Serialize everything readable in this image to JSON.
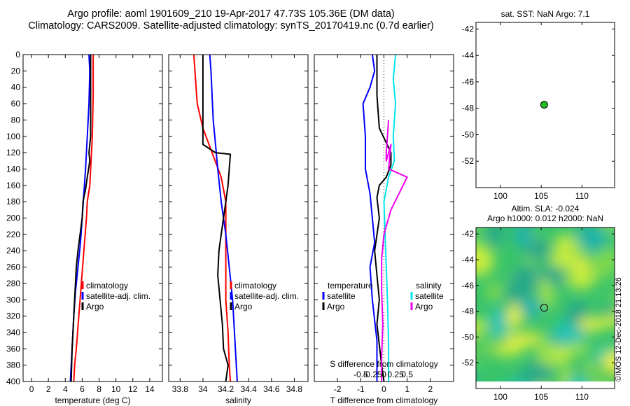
{
  "header": {
    "line1": "Argo profile: aoml 1901609_210 19-Apr-2017 47.73S 105.36E (DM data)",
    "line2": "Climatology: CARS2009. Satellite-adjusted climatology: synTS_20170419.nc (0.7d earlier)"
  },
  "watermark": "©IMOS 12-Dec-2018 21:13:26",
  "colors": {
    "climatology": "#ff0000",
    "satellite": "#0000ff",
    "argo": "#000000",
    "satellite_s": "#00e5ee",
    "climatology_s": "#ee00ee",
    "marker": "#22bb22"
  },
  "chart_data": [
    {
      "id": "temperature",
      "type": "line",
      "xlabel": "temperature (deg C)",
      "ylabel": "",
      "xlim": [
        -1,
        15.5
      ],
      "ylim": [
        400,
        0
      ],
      "xticks": [
        0,
        2,
        4,
        6,
        8,
        10,
        12,
        14
      ],
      "xtick_labels": [
        "0",
        "2",
        "4",
        "6",
        "8",
        "10",
        "12",
        "14"
      ],
      "yticks": [
        0,
        20,
        40,
        60,
        80,
        100,
        120,
        140,
        160,
        180,
        200,
        220,
        240,
        260,
        280,
        300,
        320,
        340,
        360,
        380,
        400
      ],
      "ytick_labels": [
        "0",
        "20",
        "40",
        "60",
        "80",
        "100",
        "120",
        "140",
        "160",
        "180",
        "200",
        "220",
        "240",
        "260",
        "280",
        "300",
        "320",
        "340",
        "360",
        "380",
        "400"
      ],
      "legend": {
        "position": "lower-right",
        "entries": [
          "climatology",
          "satellite-adj. clim.",
          "Argo"
        ]
      },
      "series": [
        {
          "name": "climatology",
          "color": "#ff0000",
          "x": [
            7.3,
            7.3,
            7.2,
            7.1,
            7.0,
            6.9,
            6.6,
            6.5,
            6.2,
            5.9,
            5.6,
            5.3,
            5.1,
            5.0
          ],
          "y": [
            0,
            50,
            100,
            120,
            140,
            160,
            180,
            200,
            240,
            280,
            320,
            360,
            380,
            400
          ]
        },
        {
          "name": "satellite-adj. clim.",
          "color": "#0000ff",
          "x": [
            6.8,
            6.9,
            6.8,
            6.6,
            6.4,
            6.2,
            6.0,
            5.8,
            5.5,
            5.2,
            5.0,
            4.8,
            4.6
          ],
          "y": [
            0,
            20,
            60,
            100,
            140,
            170,
            200,
            230,
            260,
            290,
            320,
            360,
            400
          ]
        },
        {
          "name": "Argo",
          "color": "#000000",
          "x": [
            7.0,
            7.0,
            7.0,
            6.8,
            6.9,
            6.6,
            6.4,
            6.1,
            6.0,
            5.5,
            5.3,
            5.2,
            5.0,
            4.8,
            4.7
          ],
          "y": [
            0,
            60,
            100,
            120,
            130,
            150,
            165,
            180,
            200,
            240,
            260,
            280,
            320,
            360,
            400
          ]
        }
      ]
    },
    {
      "id": "salinity",
      "type": "line",
      "xlabel": "salinity",
      "xlim": [
        33.7,
        34.92
      ],
      "ylim": [
        400,
        0
      ],
      "xticks": [
        33.8,
        34,
        34.2,
        34.4,
        34.6,
        34.8
      ],
      "xtick_labels": [
        "33.8",
        "34",
        "34.2",
        "34.4",
        "34.6",
        "34.8"
      ],
      "legend": {
        "position": "lower-right",
        "entries": [
          "climatology",
          "satellite-adj. clim.",
          "Argo"
        ]
      },
      "series": [
        {
          "name": "climatology",
          "color": "#ff0000",
          "x": [
            33.92,
            33.94,
            33.95,
            34.0,
            34.08,
            34.16,
            34.2,
            34.2,
            34.2,
            34.2,
            34.22,
            34.23,
            34.24
          ],
          "y": [
            0,
            40,
            60,
            90,
            120,
            150,
            180,
            220,
            260,
            300,
            340,
            380,
            400
          ]
        },
        {
          "name": "satellite-adj. clim.",
          "color": "#0000ff",
          "x": [
            34.06,
            34.07,
            34.08,
            34.09,
            34.11,
            34.13,
            34.16,
            34.2,
            34.23,
            34.26,
            34.28,
            34.3
          ],
          "y": [
            0,
            20,
            50,
            80,
            110,
            140,
            180,
            220,
            260,
            300,
            350,
            400
          ]
        },
        {
          "name": "Argo",
          "color": "#000000",
          "x": [
            34.0,
            34.0,
            34.0,
            34.11,
            34.24,
            34.23,
            34.22,
            34.2,
            34.18,
            34.16,
            34.14,
            34.13,
            34.15,
            34.17,
            34.18,
            34.22,
            34.2
          ],
          "y": [
            0,
            50,
            110,
            120,
            122,
            140,
            160,
            180,
            200,
            220,
            240,
            270,
            300,
            330,
            360,
            380,
            400
          ]
        }
      ]
    },
    {
      "id": "differences",
      "type": "line",
      "xlabel": "T difference from climatology",
      "xlabel_top": "S difference from climatology",
      "xlim": [
        -3,
        3
      ],
      "ylim": [
        400,
        0
      ],
      "xticks": [
        -2,
        -1,
        0,
        1,
        2
      ],
      "xtick_labels": [
        "-2",
        "-1",
        "0",
        "1",
        "2"
      ],
      "s_xticks": [
        -1,
        -0.5,
        0,
        0.5,
        1
      ],
      "s_xtick_labels": [
        "-0.5",
        "-0.25",
        "0",
        "0.25",
        "0.5"
      ],
      "legend": {
        "position": "lower",
        "left_title": "temperature",
        "right_title": "salinity",
        "left_entries": [
          "satellite",
          "Argo"
        ],
        "right_entries": [
          "satellite",
          "Argo"
        ]
      },
      "series": [
        {
          "name": "T satellite",
          "color": "#0000ff",
          "x": [
            -0.5,
            -0.4,
            -0.6,
            -0.9,
            -0.8,
            -0.8,
            -0.6,
            -0.5,
            -0.4,
            -0.6,
            -0.5,
            -0.3,
            -0.3
          ],
          "y": [
            0,
            20,
            40,
            60,
            100,
            140,
            170,
            200,
            230,
            260,
            300,
            350,
            400
          ]
        },
        {
          "name": "T Argo",
          "color": "#000000",
          "x": [
            -0.3,
            -0.3,
            -0.2,
            0.3,
            0.3,
            0.1,
            -0.2,
            -0.3,
            -0.2,
            -0.4,
            -0.3,
            -0.2,
            -0.3,
            -0.1,
            0.0
          ],
          "y": [
            0,
            50,
            90,
            120,
            135,
            150,
            160,
            175,
            200,
            240,
            270,
            300,
            330,
            380,
            400
          ]
        },
        {
          "name": "S satellite",
          "color": "#00e5ee",
          "x": [
            0.5,
            0.4,
            0.5,
            0.4,
            0.45,
            0.2,
            0.0,
            0.05,
            0.1,
            0.15,
            0.2,
            0.2
          ],
          "y": [
            0,
            30,
            60,
            100,
            130,
            150,
            180,
            220,
            260,
            300,
            350,
            400
          ]
        },
        {
          "name": "S Argo",
          "color": "#ee00ee",
          "x": [
            0.2,
            0.15,
            0.1,
            0.1,
            0.3,
            0.2,
            1.0,
            0.3,
            0.0,
            -0.1,
            -0.1,
            -0.05,
            -0.1,
            -0.1
          ],
          "y": [
            80,
            100,
            120,
            130,
            110,
            140,
            150,
            190,
            220,
            250,
            290,
            330,
            370,
            400
          ]
        }
      ]
    },
    {
      "id": "location-sst",
      "type": "scatter",
      "title": "sat. SST: NaN Argo: 7.1",
      "xlim": [
        97,
        114
      ],
      "ylim": [
        -54,
        -41.5
      ],
      "xticks": [
        100,
        105,
        110
      ],
      "xtick_labels": [
        "100",
        "105",
        "110"
      ],
      "yticks": [
        -42,
        -44,
        -46,
        -48,
        -50,
        -52
      ],
      "ytick_labels": [
        "-42",
        "-44",
        "-46",
        "-48",
        "-50",
        "-52"
      ],
      "points": [
        {
          "x": 105.36,
          "y": -47.73
        }
      ]
    },
    {
      "id": "location-sla",
      "type": "heatmap",
      "title": "Altim. SLA: -0.024",
      "subtitle": "Argo h1000: 0.012 h2000: NaN",
      "xlim": [
        97,
        114
      ],
      "ylim": [
        -54,
        -41.5
      ],
      "xticks": [
        100,
        105,
        110
      ],
      "xtick_labels": [
        "100",
        "105",
        "110"
      ],
      "yticks": [
        -42,
        -44,
        -46,
        -48,
        -50,
        -52
      ],
      "ytick_labels": [
        "-42",
        "-44",
        "-46",
        "-48",
        "-50",
        "-52"
      ],
      "points": [
        {
          "x": 105.36,
          "y": -47.73
        }
      ]
    }
  ]
}
